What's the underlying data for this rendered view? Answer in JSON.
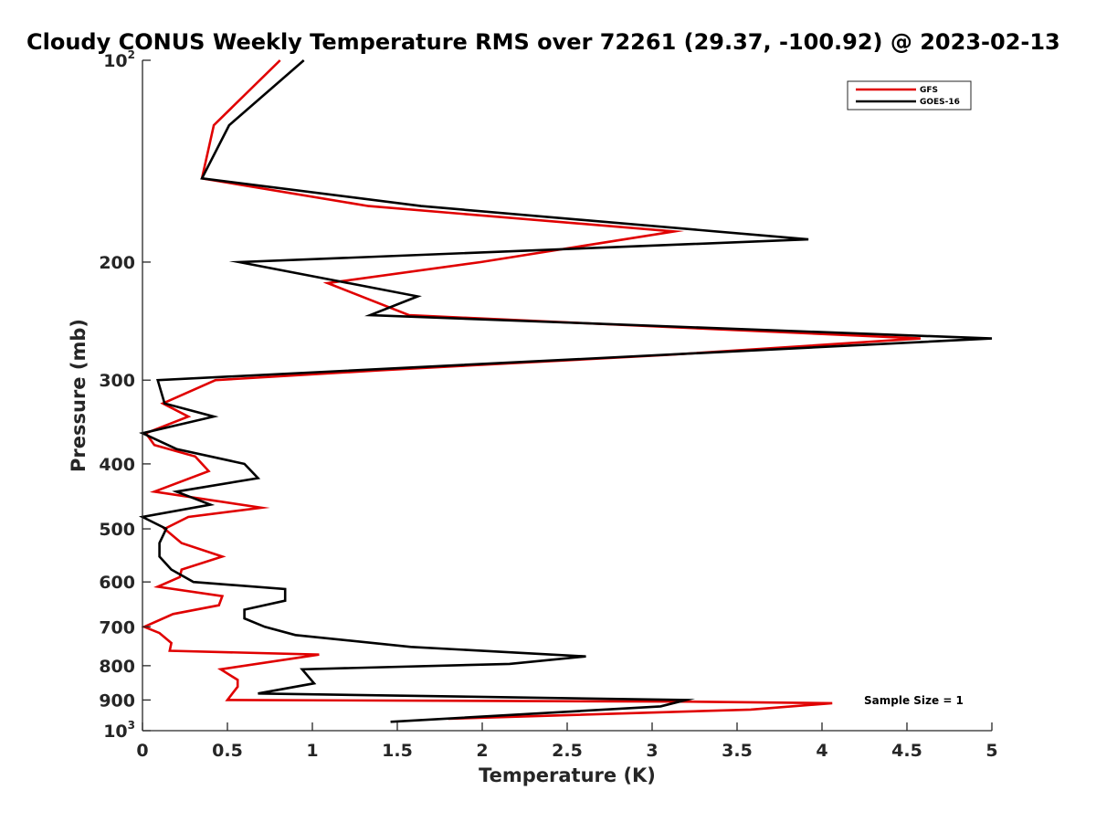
{
  "chart_data": {
    "type": "line",
    "title": "Cloudy CONUS Weekly Temperature RMS over 72261 (29.37, -100.92) @ 2023-02-13",
    "xlabel": "Temperature (K)",
    "ylabel": "Pressure (mb)",
    "xlim": [
      0,
      5
    ],
    "ylim": [
      100,
      1000
    ],
    "yscale": "log",
    "y_reversed": true,
    "grid": false,
    "legend_position": "top-right",
    "x_ticks": [
      "0",
      "0.5",
      "1",
      "1.5",
      "2",
      "2.5",
      "3",
      "3.5",
      "4",
      "4.5",
      "5"
    ],
    "x_tick_values": [
      0,
      0.5,
      1,
      1.5,
      2,
      2.5,
      3,
      3.5,
      4,
      4.5,
      5
    ],
    "y_ticks": [
      "200",
      "300",
      "400",
      "500",
      "600",
      "700",
      "800",
      "900"
    ],
    "y_tick_values": [
      200,
      300,
      400,
      500,
      600,
      700,
      800,
      900
    ],
    "y_edge_ticks": [
      {
        "base": "10",
        "exp": "2",
        "value": 100
      },
      {
        "base": "10",
        "exp": "3",
        "value": 1000
      }
    ],
    "annotation": "Sample Size = 1",
    "series": [
      {
        "name": "GFS",
        "color": "#e00000",
        "points": [
          {
            "p": 100,
            "t": 0.81
          },
          {
            "p": 125,
            "t": 0.42
          },
          {
            "p": 150,
            "t": 0.35
          },
          {
            "p": 165,
            "t": 1.33
          },
          {
            "p": 180,
            "t": 3.13
          },
          {
            "p": 200,
            "t": 1.99
          },
          {
            "p": 215,
            "t": 1.09
          },
          {
            "p": 240,
            "t": 1.57
          },
          {
            "p": 260,
            "t": 4.58
          },
          {
            "p": 275,
            "t": 3.1
          },
          {
            "p": 290,
            "t": 1.4
          },
          {
            "p": 300,
            "t": 0.43
          },
          {
            "p": 325,
            "t": 0.12
          },
          {
            "p": 340,
            "t": 0.27
          },
          {
            "p": 360,
            "t": 0.02
          },
          {
            "p": 375,
            "t": 0.07
          },
          {
            "p": 390,
            "t": 0.31
          },
          {
            "p": 410,
            "t": 0.39
          },
          {
            "p": 440,
            "t": 0.07
          },
          {
            "p": 465,
            "t": 0.7
          },
          {
            "p": 480,
            "t": 0.27
          },
          {
            "p": 500,
            "t": 0.13
          },
          {
            "p": 525,
            "t": 0.23
          },
          {
            "p": 550,
            "t": 0.47
          },
          {
            "p": 575,
            "t": 0.23
          },
          {
            "p": 590,
            "t": 0.22
          },
          {
            "p": 610,
            "t": 0.09
          },
          {
            "p": 630,
            "t": 0.47
          },
          {
            "p": 650,
            "t": 0.45
          },
          {
            "p": 670,
            "t": 0.18
          },
          {
            "p": 700,
            "t": 0.01
          },
          {
            "p": 715,
            "t": 0.1
          },
          {
            "p": 740,
            "t": 0.17
          },
          {
            "p": 760,
            "t": 0.16
          },
          {
            "p": 770,
            "t": 1.04
          },
          {
            "p": 810,
            "t": 0.46
          },
          {
            "p": 840,
            "t": 0.56
          },
          {
            "p": 860,
            "t": 0.56
          },
          {
            "p": 900,
            "t": 0.5
          },
          {
            "p": 905,
            "t": 3.22
          },
          {
            "p": 910,
            "t": 4.06
          },
          {
            "p": 930,
            "t": 3.58
          },
          {
            "p": 960,
            "t": 1.8
          }
        ]
      },
      {
        "name": "GOES-16",
        "color": "#000000",
        "points": [
          {
            "p": 100,
            "t": 0.95
          },
          {
            "p": 125,
            "t": 0.51
          },
          {
            "p": 150,
            "t": 0.35
          },
          {
            "p": 165,
            "t": 1.64
          },
          {
            "p": 185,
            "t": 3.92
          },
          {
            "p": 200,
            "t": 0.57
          },
          {
            "p": 225,
            "t": 1.62
          },
          {
            "p": 240,
            "t": 1.34
          },
          {
            "p": 260,
            "t": 5.0
          },
          {
            "p": 300,
            "t": 0.09
          },
          {
            "p": 325,
            "t": 0.13
          },
          {
            "p": 340,
            "t": 0.42
          },
          {
            "p": 360,
            "t": 0.0
          },
          {
            "p": 380,
            "t": 0.2
          },
          {
            "p": 400,
            "t": 0.6
          },
          {
            "p": 420,
            "t": 0.68
          },
          {
            "p": 440,
            "t": 0.2
          },
          {
            "p": 460,
            "t": 0.4
          },
          {
            "p": 480,
            "t": 0.0
          },
          {
            "p": 500,
            "t": 0.14
          },
          {
            "p": 525,
            "t": 0.1
          },
          {
            "p": 550,
            "t": 0.1
          },
          {
            "p": 575,
            "t": 0.17
          },
          {
            "p": 600,
            "t": 0.3
          },
          {
            "p": 615,
            "t": 0.84
          },
          {
            "p": 640,
            "t": 0.84
          },
          {
            "p": 660,
            "t": 0.6
          },
          {
            "p": 680,
            "t": 0.6
          },
          {
            "p": 700,
            "t": 0.72
          },
          {
            "p": 720,
            "t": 0.9
          },
          {
            "p": 750,
            "t": 1.58
          },
          {
            "p": 775,
            "t": 2.61
          },
          {
            "p": 795,
            "t": 2.16
          },
          {
            "p": 810,
            "t": 0.94
          },
          {
            "p": 850,
            "t": 1.01
          },
          {
            "p": 880,
            "t": 0.68
          },
          {
            "p": 900,
            "t": 3.2
          },
          {
            "p": 920,
            "t": 3.05
          },
          {
            "p": 970,
            "t": 1.46
          }
        ]
      }
    ]
  }
}
